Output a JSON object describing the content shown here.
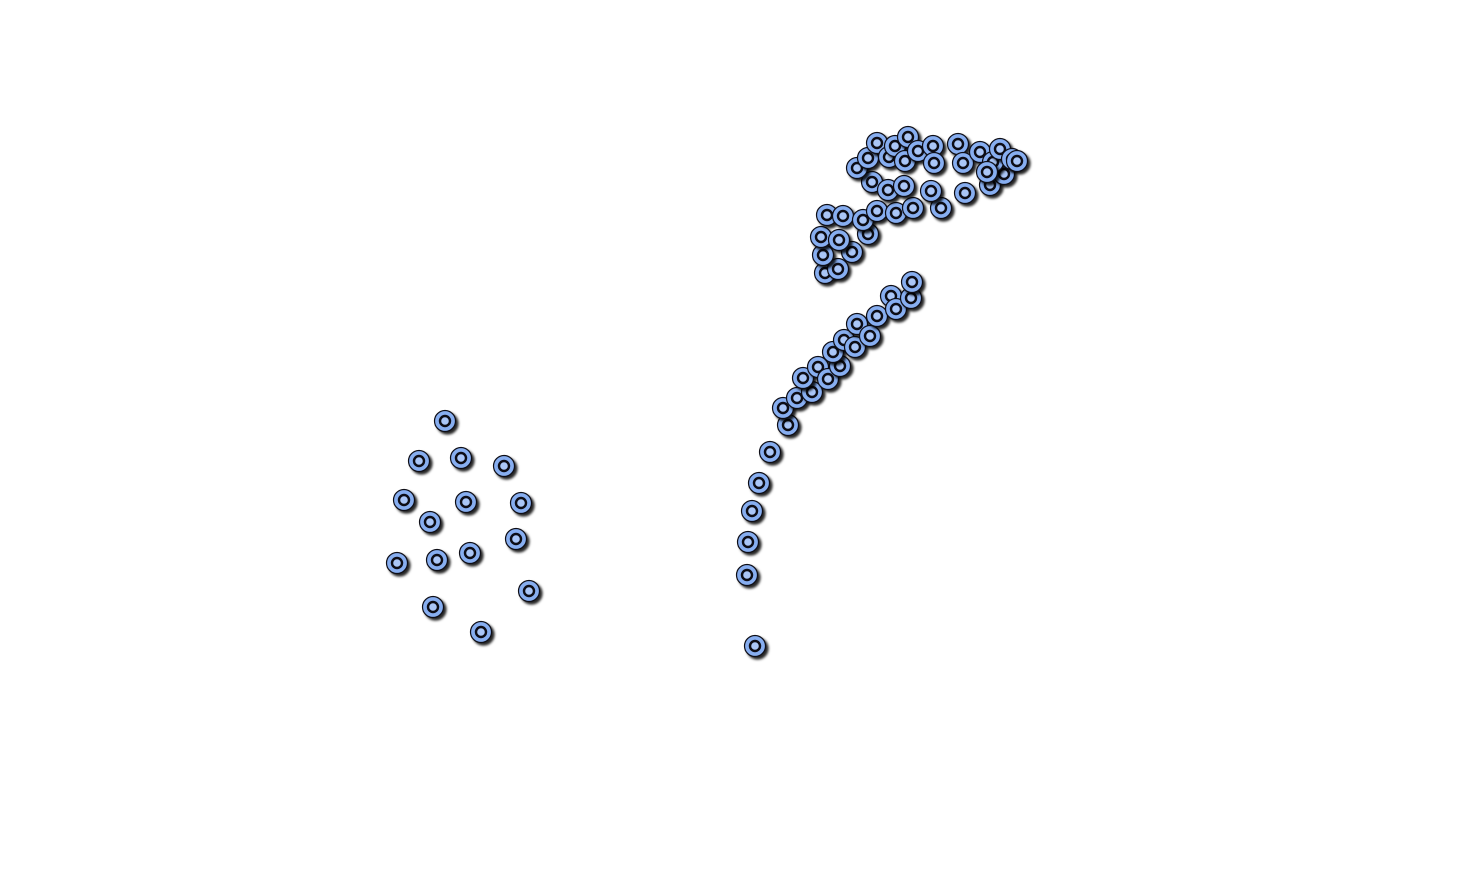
{
  "colors": {
    "background": "#ffffff",
    "node_fill": "#87aef0",
    "node_inner": "#aac6f7",
    "node_stroke": "#0b0b14",
    "node_shadow": "#000000"
  },
  "icons": {
    "node": "circle-node-icon"
  }
}
